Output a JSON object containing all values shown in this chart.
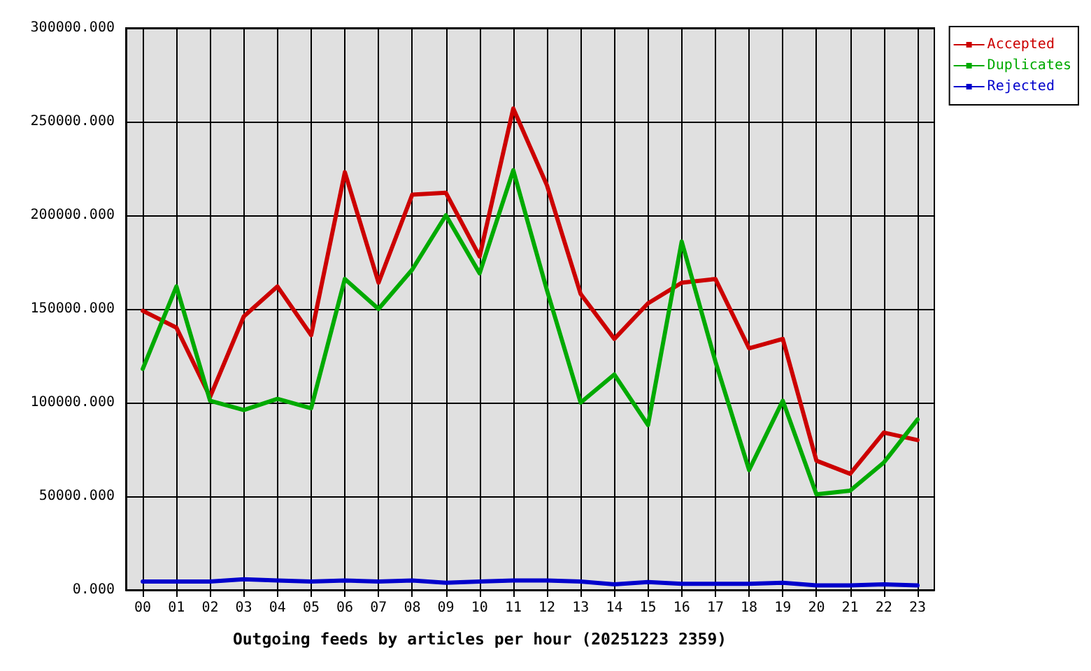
{
  "chart_data": {
    "type": "line",
    "xlabel": "Outgoing feeds by articles per hour (20251223 2359)",
    "categories": [
      "00",
      "01",
      "02",
      "03",
      "04",
      "05",
      "06",
      "07",
      "08",
      "09",
      "10",
      "11",
      "12",
      "13",
      "14",
      "15",
      "16",
      "17",
      "18",
      "19",
      "20",
      "21",
      "22",
      "23"
    ],
    "series": [
      {
        "name": "Accepted",
        "color": "#cc0000",
        "values": [
          149000,
          140000,
          103000,
          146000,
          162000,
          136000,
          223000,
          164000,
          211000,
          212000,
          178000,
          257000,
          216000,
          158000,
          134000,
          153000,
          164000,
          166000,
          129000,
          134000,
          69000,
          62000,
          84000,
          80000
        ]
      },
      {
        "name": "Duplicates",
        "color": "#00aa00",
        "values": [
          118000,
          162000,
          101000,
          96000,
          102000,
          97000,
          166000,
          150000,
          171000,
          200000,
          169000,
          224000,
          160000,
          100000,
          115000,
          88000,
          186000,
          122000,
          64000,
          101000,
          51000,
          53000,
          68000,
          91000
        ]
      },
      {
        "name": "Rejected",
        "color": "#0000cc",
        "values": [
          4500,
          4500,
          4500,
          5700,
          5000,
          4500,
          5000,
          4500,
          5000,
          3800,
          4500,
          5000,
          5000,
          4500,
          3000,
          4200,
          3300,
          3300,
          3300,
          3800,
          2400,
          2400,
          3000,
          2400
        ]
      }
    ],
    "ylim": [
      0,
      300000
    ],
    "yticks": [
      {
        "value": 0,
        "label": "0.000"
      },
      {
        "value": 50000,
        "label": "50000.000"
      },
      {
        "value": 100000,
        "label": "100000.000"
      },
      {
        "value": 150000,
        "label": "150000.000"
      },
      {
        "value": 200000,
        "label": "200000.000"
      },
      {
        "value": 250000,
        "label": "250000.000"
      },
      {
        "value": 300000,
        "label": "300000.000"
      }
    ],
    "grid": true,
    "legend": "top right",
    "marker": "none",
    "line_style": "solid"
  }
}
